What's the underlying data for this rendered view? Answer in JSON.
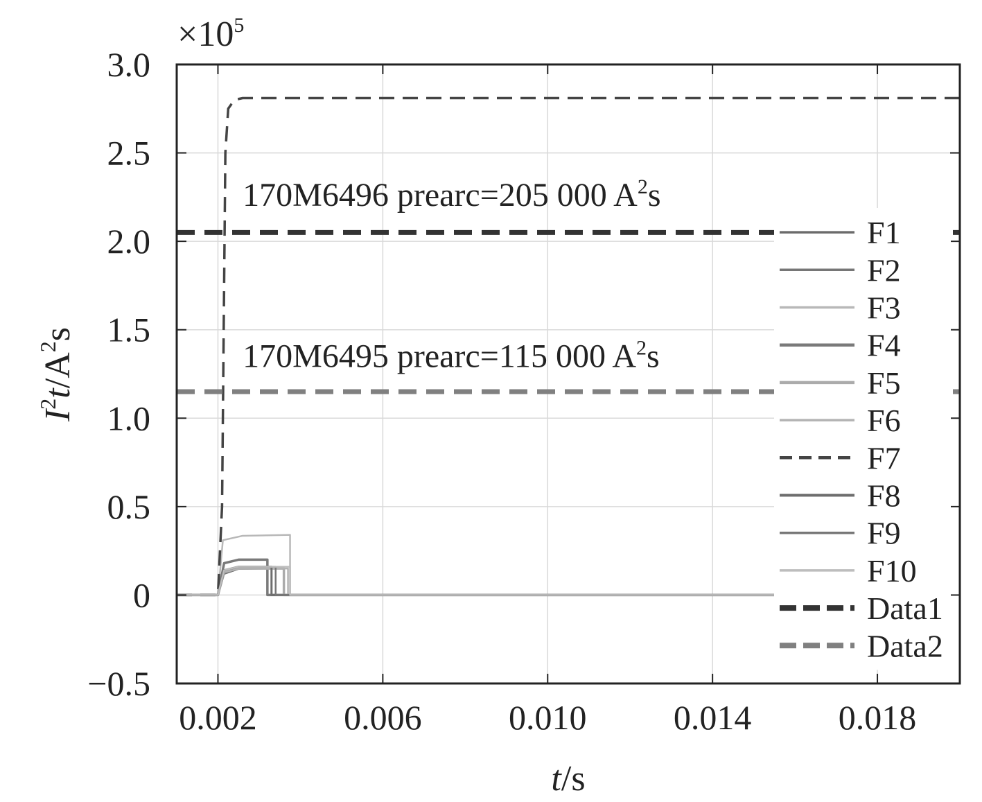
{
  "chart_data": {
    "type": "line",
    "xlabel_var": "t",
    "xlabel_unit": "/s",
    "ylabel_var_main": "I",
    "ylabel_var_sup": "2",
    "ylabel_var_t": "t",
    "ylabel_unit_main": "/A",
    "ylabel_unit_sup": "2",
    "ylabel_unit_end": "s",
    "y_multiplier_base": "×10",
    "y_multiplier_exp": "5",
    "xlim": [
      0.001,
      0.02
    ],
    "ylim": [
      -0.5,
      3.0
    ],
    "x_ticks": [
      0.002,
      0.006,
      0.01,
      0.014,
      0.018
    ],
    "x_tick_labels": [
      "0.002",
      "0.006",
      "0.010",
      "0.014",
      "0.018"
    ],
    "y_ticks": [
      -0.5,
      0,
      0.5,
      1.0,
      1.5,
      2.0,
      2.5,
      3.0
    ],
    "y_tick_labels": [
      "−0.5",
      "0",
      "0.5",
      "1.0",
      "1.5",
      "2.0",
      "2.5",
      "3.0"
    ],
    "grid": true,
    "legend_position": "right",
    "annotations": [
      {
        "id": "anno-6496",
        "prefix": "170M6496 prearc=205 000 A",
        "sup": "2",
        "suffix": "s",
        "x": 0.0026,
        "y": 2.2
      },
      {
        "id": "anno-6495",
        "prefix": "170M6495 prearc=115 000 A",
        "sup": "2",
        "suffix": "s",
        "x": 0.0026,
        "y": 1.29
      }
    ],
    "series": [
      {
        "name": "F1",
        "color": "#6b6b6b",
        "width": 2.5,
        "dash": "",
        "x": [
          0.001,
          0.002,
          0.00215,
          0.0025,
          0.0033,
          0.0033,
          0.0155
        ],
        "y": [
          0,
          0,
          0.12,
          0.148,
          0.15,
          0,
          0
        ]
      },
      {
        "name": "F2",
        "color": "#767676",
        "width": 2.5,
        "dash": "",
        "x": [
          0.001,
          0.002,
          0.00215,
          0.0025,
          0.0034,
          0.0034,
          0.0155
        ],
        "y": [
          0,
          0,
          0.12,
          0.148,
          0.15,
          0,
          0
        ]
      },
      {
        "name": "F3",
        "color": "#b8b8b8",
        "width": 2.5,
        "dash": "",
        "x": [
          0.001,
          0.002,
          0.00212,
          0.0026,
          0.00375,
          0.00375,
          0.0155
        ],
        "y": [
          0,
          0,
          0.31,
          0.335,
          0.34,
          0,
          0
        ]
      },
      {
        "name": "F4",
        "color": "#7a7a7a",
        "width": 3.5,
        "dash": "",
        "x": [
          0.001,
          0.002,
          0.00215,
          0.0025,
          0.0032,
          0.0032,
          0.0155
        ],
        "y": [
          0,
          0,
          0.18,
          0.2,
          0.2,
          0,
          0
        ]
      },
      {
        "name": "F5",
        "color": "#ababab",
        "width": 3.5,
        "dash": "",
        "x": [
          0.001,
          0.002,
          0.00215,
          0.0025,
          0.0036,
          0.0036,
          0.0155
        ],
        "y": [
          0,
          0,
          0.13,
          0.15,
          0.15,
          0,
          0
        ]
      },
      {
        "name": "F6",
        "color": "#b3b3b3",
        "width": 2.5,
        "dash": "",
        "x": [
          0.001,
          0.002,
          0.00215,
          0.0025,
          0.0037,
          0.0037,
          0.0155
        ],
        "y": [
          0,
          0,
          0.13,
          0.15,
          0.15,
          0,
          0
        ]
      },
      {
        "name": "F7",
        "color": "#444444",
        "width": 3.5,
        "dash": "22,12",
        "x": [
          0.001,
          0.002,
          0.0021,
          0.00218,
          0.00225,
          0.0024,
          0.0026,
          0.02
        ],
        "y": [
          0,
          0,
          0.5,
          2.5,
          2.75,
          2.8,
          2.81,
          2.81
        ]
      },
      {
        "name": "F8",
        "color": "#6e6e6e",
        "width": 3,
        "dash": "",
        "x": [
          0.001,
          0.002,
          0.00215,
          0.0025,
          0.0033,
          0.0033,
          0.0155
        ],
        "y": [
          0,
          0,
          0.14,
          0.16,
          0.16,
          0,
          0
        ]
      },
      {
        "name": "F9",
        "color": "#777777",
        "width": 2.5,
        "dash": "",
        "x": [
          0.001,
          0.002,
          0.00215,
          0.0025,
          0.0034,
          0.0034,
          0.0155
        ],
        "y": [
          0,
          0,
          0.14,
          0.16,
          0.16,
          0,
          0
        ]
      },
      {
        "name": "F10",
        "color": "#bdbdbd",
        "width": 2.5,
        "dash": "",
        "x": [
          0.001,
          0.002,
          0.00215,
          0.0025,
          0.00375,
          0.00375,
          0.0155
        ],
        "y": [
          0,
          0,
          0.14,
          0.16,
          0.16,
          0,
          0
        ]
      },
      {
        "name": "Data1",
        "color": "#333333",
        "width": 7,
        "dash": "26,14",
        "x": [
          0.001,
          0.02
        ],
        "y": [
          2.05,
          2.05
        ]
      },
      {
        "name": "Data2",
        "color": "#808080",
        "width": 7,
        "dash": "26,14",
        "x": [
          0.001,
          0.02
        ],
        "y": [
          1.15,
          1.15
        ]
      }
    ]
  }
}
